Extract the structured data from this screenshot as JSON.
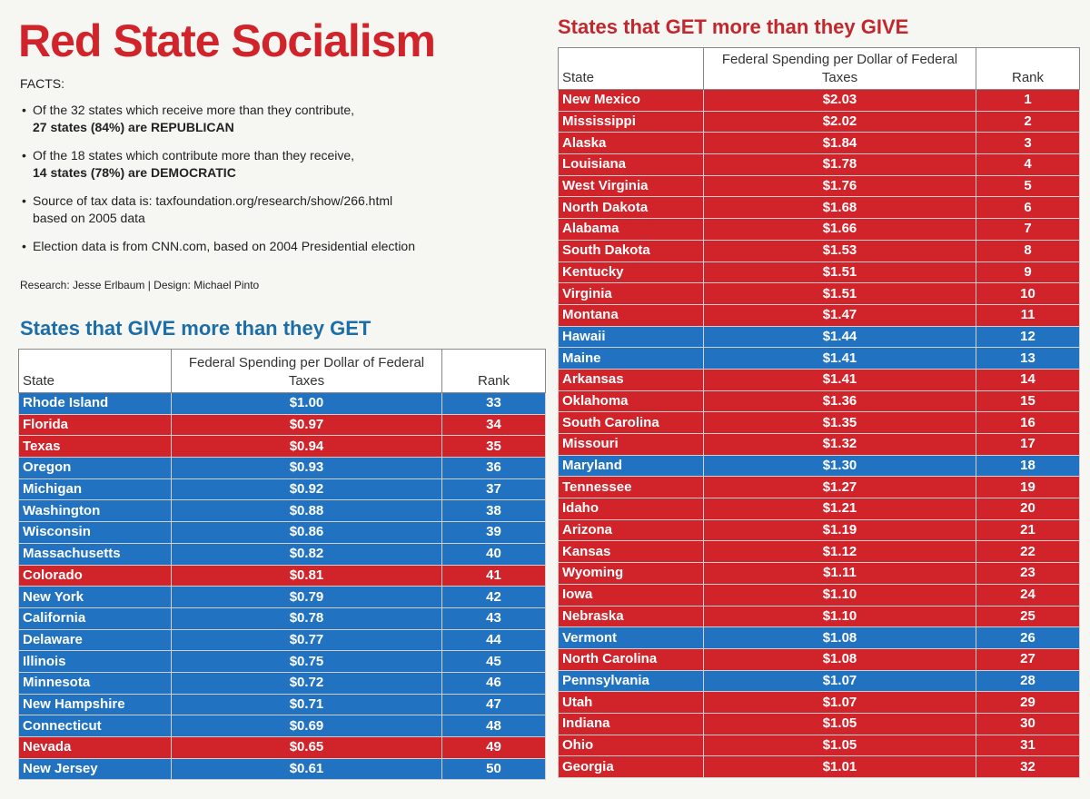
{
  "title": "Red State Socialism",
  "facts": {
    "label": "FACTS:",
    "items": [
      {
        "text": "Of the 32 states which receive more than they contribute,",
        "bold": "27 states (84%) are REPUBLICAN"
      },
      {
        "text": "Of the 18 states which contribute more than they receive,",
        "bold": "14 states (78%) are DEMOCRATIC"
      },
      {
        "text": "Source of tax data is: taxfoundation.org/research/show/266.html",
        "text2": "based on 2005 data"
      },
      {
        "text": "Election data is from CNN.com, based on 2004 Presidential election"
      }
    ]
  },
  "credit": "Research: Jesse Erlbaum | Design: Michael Pinto",
  "colors": {
    "red": "#d1232a",
    "blue": "#2173c2",
    "title_red": "#d1232a",
    "give_title_blue": "#1b6ea8"
  },
  "give_section": {
    "title": "States that GIVE more than they GET",
    "headers": {
      "state": "State",
      "spending": "Federal Spending per Dollar of Federal Taxes",
      "rank": "Rank"
    },
    "rows": [
      {
        "state": "Rhode Island",
        "spending": "$1.00",
        "rank": "33",
        "color": "blue"
      },
      {
        "state": "Florida",
        "spending": "$0.97",
        "rank": "34",
        "color": "red"
      },
      {
        "state": "Texas",
        "spending": "$0.94",
        "rank": "35",
        "color": "red"
      },
      {
        "state": "Oregon",
        "spending": "$0.93",
        "rank": "36",
        "color": "blue"
      },
      {
        "state": "Michigan",
        "spending": "$0.92",
        "rank": "37",
        "color": "blue"
      },
      {
        "state": "Washington",
        "spending": "$0.88",
        "rank": "38",
        "color": "blue"
      },
      {
        "state": "Wisconsin",
        "spending": "$0.86",
        "rank": "39",
        "color": "blue"
      },
      {
        "state": "Massachusetts",
        "spending": "$0.82",
        "rank": "40",
        "color": "blue"
      },
      {
        "state": "Colorado",
        "spending": "$0.81",
        "rank": "41",
        "color": "red"
      },
      {
        "state": "New York",
        "spending": "$0.79",
        "rank": "42",
        "color": "blue"
      },
      {
        "state": "California",
        "spending": "$0.78",
        "rank": "43",
        "color": "blue"
      },
      {
        "state": "Delaware",
        "spending": "$0.77",
        "rank": "44",
        "color": "blue"
      },
      {
        "state": "Illinois",
        "spending": "$0.75",
        "rank": "45",
        "color": "blue"
      },
      {
        "state": "Minnesota",
        "spending": "$0.72",
        "rank": "46",
        "color": "blue"
      },
      {
        "state": "New Hampshire",
        "spending": "$0.71",
        "rank": "47",
        "color": "blue"
      },
      {
        "state": "Connecticut",
        "spending": "$0.69",
        "rank": "48",
        "color": "blue"
      },
      {
        "state": "Nevada",
        "spending": "$0.65",
        "rank": "49",
        "color": "red"
      },
      {
        "state": "New Jersey",
        "spending": "$0.61",
        "rank": "50",
        "color": "blue"
      }
    ]
  },
  "get_section": {
    "title": "States that GET more than they GIVE",
    "headers": {
      "state": "State",
      "spending": "Federal Spending per Dollar of Federal Taxes",
      "rank": "Rank"
    },
    "rows": [
      {
        "state": "New Mexico",
        "spending": "$2.03",
        "rank": "1",
        "color": "red"
      },
      {
        "state": "Mississippi",
        "spending": "$2.02",
        "rank": "2",
        "color": "red"
      },
      {
        "state": "Alaska",
        "spending": "$1.84",
        "rank": "3",
        "color": "red"
      },
      {
        "state": "Louisiana",
        "spending": "$1.78",
        "rank": "4",
        "color": "red"
      },
      {
        "state": "West Virginia",
        "spending": "$1.76",
        "rank": "5",
        "color": "red"
      },
      {
        "state": "North Dakota",
        "spending": "$1.68",
        "rank": "6",
        "color": "red"
      },
      {
        "state": "Alabama",
        "spending": "$1.66",
        "rank": "7",
        "color": "red"
      },
      {
        "state": "South Dakota",
        "spending": "$1.53",
        "rank": "8",
        "color": "red"
      },
      {
        "state": "Kentucky",
        "spending": "$1.51",
        "rank": "9",
        "color": "red"
      },
      {
        "state": "Virginia",
        "spending": "$1.51",
        "rank": "10",
        "color": "red"
      },
      {
        "state": "Montana",
        "spending": "$1.47",
        "rank": "11",
        "color": "red"
      },
      {
        "state": "Hawaii",
        "spending": "$1.44",
        "rank": "12",
        "color": "blue"
      },
      {
        "state": "Maine",
        "spending": "$1.41",
        "rank": "13",
        "color": "blue"
      },
      {
        "state": "Arkansas",
        "spending": "$1.41",
        "rank": "14",
        "color": "red"
      },
      {
        "state": "Oklahoma",
        "spending": "$1.36",
        "rank": "15",
        "color": "red"
      },
      {
        "state": "South Carolina",
        "spending": "$1.35",
        "rank": "16",
        "color": "red"
      },
      {
        "state": "Missouri",
        "spending": "$1.32",
        "rank": "17",
        "color": "red"
      },
      {
        "state": "Maryland",
        "spending": "$1.30",
        "rank": "18",
        "color": "blue"
      },
      {
        "state": "Tennessee",
        "spending": "$1.27",
        "rank": "19",
        "color": "red"
      },
      {
        "state": "Idaho",
        "spending": "$1.21",
        "rank": "20",
        "color": "red"
      },
      {
        "state": "Arizona",
        "spending": "$1.19",
        "rank": "21",
        "color": "red"
      },
      {
        "state": "Kansas",
        "spending": "$1.12",
        "rank": "22",
        "color": "red"
      },
      {
        "state": "Wyoming",
        "spending": "$1.11",
        "rank": "23",
        "color": "red"
      },
      {
        "state": "Iowa",
        "spending": "$1.10",
        "rank": "24",
        "color": "red"
      },
      {
        "state": "Nebraska",
        "spending": "$1.10",
        "rank": "25",
        "color": "red"
      },
      {
        "state": "Vermont",
        "spending": "$1.08",
        "rank": "26",
        "color": "blue"
      },
      {
        "state": "North Carolina",
        "spending": "$1.08",
        "rank": "27",
        "color": "red"
      },
      {
        "state": "Pennsylvania",
        "spending": "$1.07",
        "rank": "28",
        "color": "blue"
      },
      {
        "state": "Utah",
        "spending": "$1.07",
        "rank": "29",
        "color": "red"
      },
      {
        "state": "Indiana",
        "spending": "$1.05",
        "rank": "30",
        "color": "red"
      },
      {
        "state": "Ohio",
        "spending": "$1.05",
        "rank": "31",
        "color": "red"
      },
      {
        "state": "Georgia",
        "spending": "$1.01",
        "rank": "32",
        "color": "red"
      }
    ]
  }
}
